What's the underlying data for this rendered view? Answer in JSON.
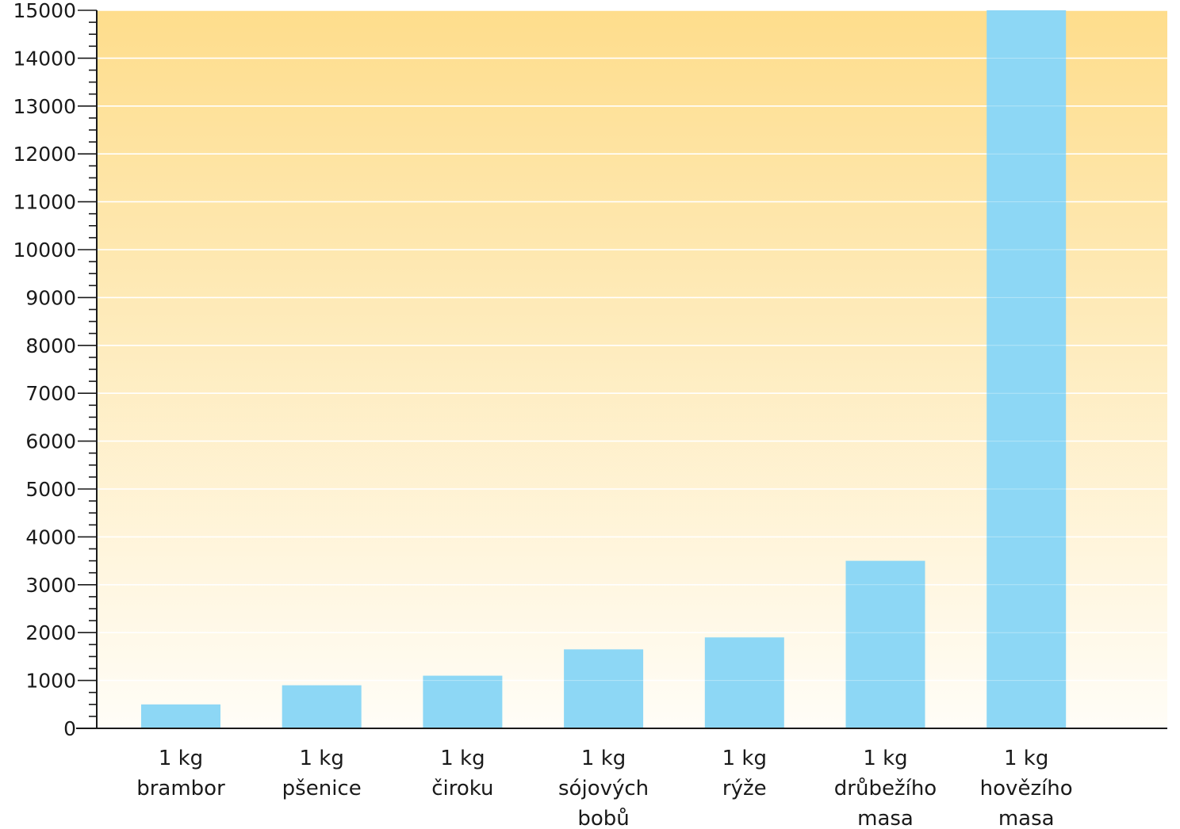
{
  "chart_data": {
    "type": "bar",
    "title": "",
    "xlabel": "",
    "ylabel": "",
    "ylim": [
      0,
      15000
    ],
    "y_major_step": 1000,
    "y_minor_step": 250,
    "grid": true,
    "categories": [
      [
        "1 kg",
        "brambor"
      ],
      [
        "1 kg",
        "pšenice"
      ],
      [
        "1 kg",
        "čiroku"
      ],
      [
        "1 kg",
        "sójových",
        "bobů"
      ],
      [
        "1 kg",
        "rýže"
      ],
      [
        "1 kg",
        "drůbežího",
        "masa"
      ],
      [
        "1 kg",
        "hovězího",
        "masa"
      ]
    ],
    "values": [
      500,
      900,
      1100,
      1650,
      1900,
      3500,
      15000
    ],
    "y_tick_labels": [
      "0",
      "1000",
      "2000",
      "3000",
      "4000",
      "5000",
      "6000",
      "7000",
      "8000",
      "9000",
      "10000",
      "11000",
      "12000",
      "13000",
      "14000",
      "15000"
    ],
    "colors": {
      "bar": "#8dd7f5",
      "background_top": "#fedd8c",
      "background_bottom": "#fffdf7",
      "grid": "#ffffff",
      "axis": "#1a1a1a"
    }
  }
}
